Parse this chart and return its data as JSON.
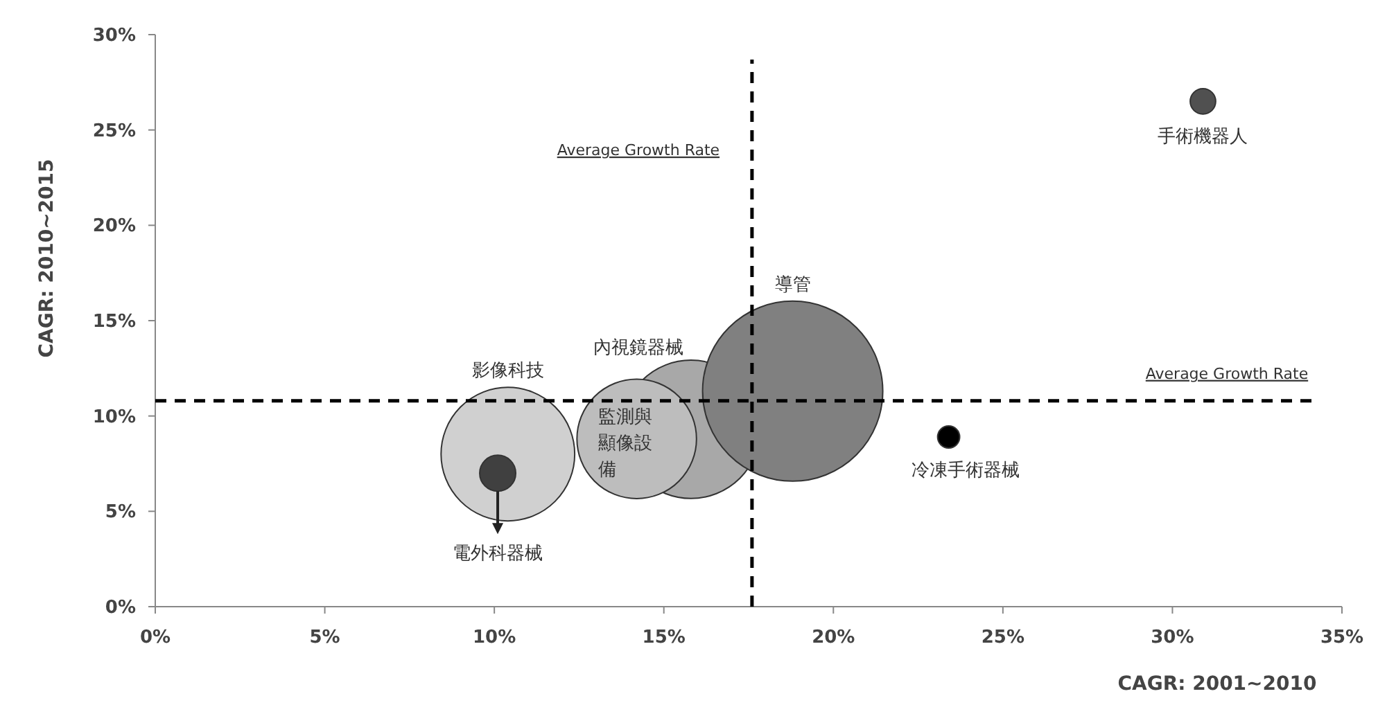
{
  "chart_data": {
    "type": "bubble",
    "xlabel": "CAGR: 2001~2010",
    "ylabel": "CAGR: 2010~2015",
    "xlim": [
      0,
      35
    ],
    "xticks": [
      {
        "value": 0,
        "label": "0%"
      },
      {
        "value": 5,
        "label": "5%"
      },
      {
        "value": 10,
        "label": "10%"
      },
      {
        "value": 15,
        "label": "15%"
      },
      {
        "value": 20,
        "label": "20%"
      },
      {
        "value": 25,
        "label": "25%"
      },
      {
        "value": 30,
        "label": "30%"
      },
      {
        "value": 35,
        "label": "35%"
      }
    ],
    "ylim": [
      0,
      30
    ],
    "yticks": [
      {
        "value": 0,
        "label": "0%"
      },
      {
        "value": 5,
        "label": "5%"
      },
      {
        "value": 10,
        "label": "10%"
      },
      {
        "value": 15,
        "label": "15%"
      },
      {
        "value": 20,
        "label": "20%"
      },
      {
        "value": 25,
        "label": "25%"
      },
      {
        "value": 30,
        "label": "30%"
      }
    ],
    "grid": false,
    "series": [
      {
        "name": "影像科技",
        "color": "#d0d0d0",
        "x": [
          10.4
        ],
        "values": [
          8.0
        ],
        "sizes": [
          0.55
        ]
      },
      {
        "name": "內視鏡器械",
        "color": "#a8a8a8",
        "x": [
          15.8
        ],
        "values": [
          9.3
        ],
        "sizes": [
          0.59
        ]
      },
      {
        "name": "監測與顯像設備",
        "color": "#bdbdbd",
        "x": [
          14.2
        ],
        "values": [
          8.8
        ],
        "sizes": [
          0.44
        ]
      },
      {
        "name": "導管",
        "color": "#808080",
        "x": [
          18.8
        ],
        "values": [
          11.3
        ],
        "sizes": [
          1
        ]
      },
      {
        "name": "電外科器械",
        "color": "#404040",
        "x": [
          10.1
        ],
        "values": [
          7.0
        ],
        "sizes": [
          0.04
        ]
      },
      {
        "name": "冷凍手術器械",
        "color": "#000000",
        "x": [
          23.4
        ],
        "values": [
          8.9
        ],
        "sizes": [
          0.015
        ]
      },
      {
        "name": "手術機器人",
        "color": "#505050",
        "x": [
          30.9
        ],
        "values": [
          26.5
        ],
        "sizes": [
          0.02
        ]
      }
    ],
    "ref_lines": [
      {
        "axis": "x",
        "value": 17.6,
        "label": "Average Growth Rate",
        "line_style": "dashed",
        "color": "#000000"
      },
      {
        "axis": "y",
        "value": 10.8,
        "label": "Average Growth Rate",
        "line_style": "dashed",
        "color": "#000000"
      }
    ]
  }
}
